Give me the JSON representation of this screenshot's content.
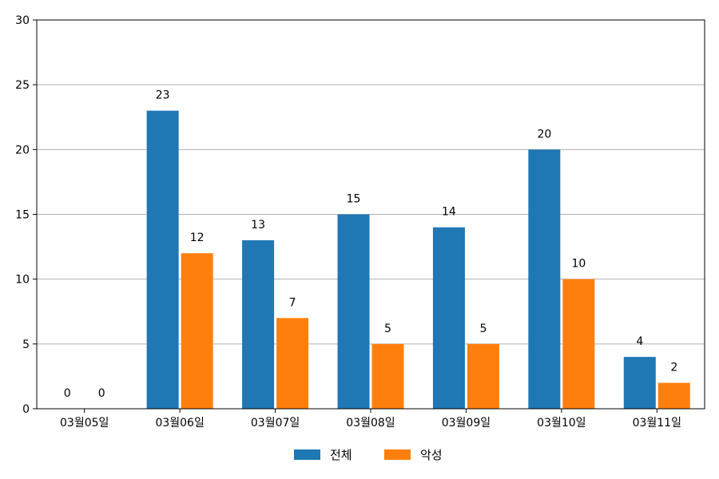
{
  "chart_data": {
    "type": "bar",
    "categories": [
      "03월05일",
      "03월06일",
      "03월07일",
      "03월08일",
      "03월09일",
      "03월10일",
      "03월11일"
    ],
    "series": [
      {
        "name": "전체",
        "values": [
          0,
          23,
          13,
          15,
          14,
          20,
          4
        ],
        "color": "#1f77b4"
      },
      {
        "name": "악성",
        "values": [
          0,
          12,
          7,
          5,
          5,
          10,
          2
        ],
        "color": "#ff7f0e"
      }
    ],
    "ylim": [
      0,
      30
    ],
    "yticks": [
      0,
      5,
      10,
      15,
      20,
      25,
      30
    ],
    "grid": true,
    "legend": "bottom-center",
    "title": "",
    "xlabel": "",
    "ylabel": ""
  }
}
